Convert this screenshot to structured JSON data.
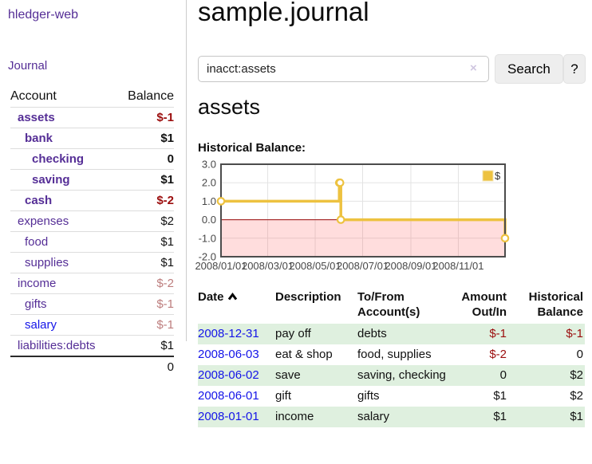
{
  "app": {
    "brand": "hledger-web",
    "nav": {
      "journal": "Journal"
    }
  },
  "sidebar": {
    "header": {
      "account": "Account",
      "balance": "Balance"
    },
    "accounts": [
      {
        "name": "assets",
        "indent": 1,
        "bold": true,
        "link_style": "visited",
        "balance": "$-1",
        "balance_style": "negative"
      },
      {
        "name": "bank",
        "indent": 2,
        "bold": true,
        "link_style": "visited",
        "balance": "$1",
        "balance_style": "normal"
      },
      {
        "name": "checking",
        "indent": 3,
        "bold": true,
        "link_style": "visited",
        "balance": "0",
        "balance_style": "normal"
      },
      {
        "name": "saving",
        "indent": 3,
        "bold": true,
        "link_style": "visited",
        "balance": "$1",
        "balance_style": "normal"
      },
      {
        "name": "cash",
        "indent": 2,
        "bold": true,
        "link_style": "visited",
        "balance": "$-2",
        "balance_style": "negative"
      },
      {
        "name": "expenses",
        "indent": 1,
        "bold": false,
        "link_style": "visited",
        "balance": "$2",
        "balance_style": "normal"
      },
      {
        "name": "food",
        "indent": 2,
        "bold": false,
        "link_style": "visited",
        "balance": "$1",
        "balance_style": "normal"
      },
      {
        "name": "supplies",
        "indent": 2,
        "bold": false,
        "link_style": "visited",
        "balance": "$1",
        "balance_style": "normal"
      },
      {
        "name": "income",
        "indent": 1,
        "bold": false,
        "link_style": "visited",
        "balance": "$-2",
        "balance_style": "negative-soft"
      },
      {
        "name": "gifts",
        "indent": 2,
        "bold": false,
        "link_style": "visited",
        "balance": "$-1",
        "balance_style": "negative-soft"
      },
      {
        "name": "salary",
        "indent": 2,
        "bold": false,
        "link_style": "unvisited",
        "balance": "$-1",
        "balance_style": "negative-soft"
      },
      {
        "name": "liabilities:debts",
        "indent": 1,
        "bold": false,
        "link_style": "visited",
        "balance": "$1",
        "balance_style": "normal"
      }
    ],
    "total": "0"
  },
  "main": {
    "title": "sample.journal"
  },
  "search": {
    "value": "inacct:assets",
    "clear_icon": "×",
    "search_button": "Search",
    "help_button": "?"
  },
  "account_view": {
    "heading": "assets",
    "chart_title": "Historical Balance:"
  },
  "chart_data": {
    "type": "line",
    "step": true,
    "title": "Historical Balance",
    "series": [
      {
        "name": "$",
        "color": "#edc240",
        "points": [
          [
            "2008-01-01",
            1
          ],
          [
            "2008-06-01",
            2
          ],
          [
            "2008-06-02",
            2
          ],
          [
            "2008-06-03",
            0
          ],
          [
            "2008-12-31",
            -1
          ]
        ]
      }
    ],
    "xrange": [
      "2008-01-01",
      "2008-12-31"
    ],
    "ylim": [
      -2,
      3
    ],
    "yticks": [
      3,
      2,
      1,
      0,
      -1,
      -2
    ],
    "ytick_labels": [
      "3.0",
      "2.0",
      "1.0",
      "0.0",
      "-1.0",
      "-2.0"
    ],
    "xticks": [
      "2008-01-01",
      "2008-03-01",
      "2008-05-01",
      "2008-07-01",
      "2008-09-01",
      "2008-11-01"
    ],
    "xtick_labels": [
      "2008/01/01",
      "2008/03/01",
      "2008/05/01",
      "2008/07/01",
      "2008/09/01",
      "2008/11/01"
    ],
    "legend_position": "top-right",
    "grid": true,
    "grid_color": "#e3e3e3",
    "border_color": "#4c4c4c",
    "tick_color": "#474747",
    "negative_region_color": "rgba(255,85,85,0.20)",
    "zero_line_color": "#9b0d0d"
  },
  "register": {
    "columns": [
      {
        "lines": [
          "Date"
        ],
        "align": "left",
        "sorted": "ascending"
      },
      {
        "lines": [
          "Description"
        ],
        "align": "left"
      },
      {
        "lines": [
          "To/From",
          "Account(s)"
        ],
        "align": "left"
      },
      {
        "lines": [
          "Amount",
          "Out/In"
        ],
        "align": "right"
      },
      {
        "lines": [
          "Historical",
          "Balance"
        ],
        "align": "right"
      }
    ],
    "rows": [
      {
        "date": "2008-12-31",
        "description": "pay off",
        "accounts": "debts",
        "amount": "$-1",
        "amount_negative": true,
        "balance": "$-1",
        "balance_negative": true,
        "shaded": true
      },
      {
        "date": "2008-06-03",
        "description": "eat & shop",
        "accounts": "food, supplies",
        "amount": "$-2",
        "amount_negative": true,
        "balance": "0",
        "balance_negative": false,
        "shaded": false
      },
      {
        "date": "2008-06-02",
        "description": "save",
        "accounts": "saving, checking",
        "amount": "0",
        "amount_negative": false,
        "balance": "$2",
        "balance_negative": false,
        "shaded": true
      },
      {
        "date": "2008-06-01",
        "description": "gift",
        "accounts": "gifts",
        "amount": "$1",
        "amount_negative": false,
        "balance": "$2",
        "balance_negative": false,
        "shaded": false
      },
      {
        "date": "2008-01-01",
        "description": "income",
        "accounts": "salary",
        "amount": "$1",
        "amount_negative": false,
        "balance": "$1",
        "balance_negative": false,
        "shaded": true
      }
    ]
  },
  "theme": {
    "row_shade": "#dff0df",
    "link_purple": "#552e96",
    "link_blue": "#1414e8",
    "negative_strong": "#9b0d0d",
    "negative_soft": "#bd7d7d"
  }
}
